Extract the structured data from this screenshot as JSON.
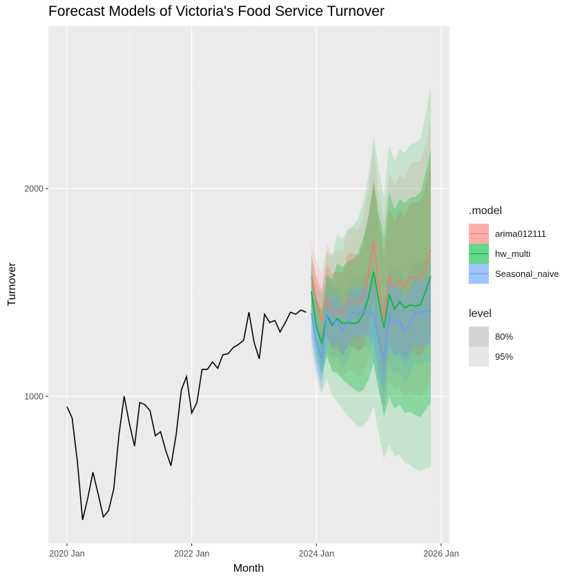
{
  "chart_data": {
    "type": "line",
    "title": "Forecast Models of Victoria's Food Service Turnover",
    "xlabel": "Month",
    "ylabel": "Turnover",
    "x_ticks": [
      "2020 Jan",
      "2022 Jan",
      "2024 Jan",
      "2026 Jan"
    ],
    "y_ticks": [
      1000,
      2000
    ],
    "xlim": [
      "2019-10",
      "2026-02"
    ],
    "ylim": [
      400,
      2790
    ],
    "grid": true,
    "legend_position": "right",
    "history": {
      "x": [
        "2020-01",
        "2020-02",
        "2020-03",
        "2020-04",
        "2020-05",
        "2020-06",
        "2020-07",
        "2020-08",
        "2020-09",
        "2020-10",
        "2020-11",
        "2020-12",
        "2021-01",
        "2021-02",
        "2021-03",
        "2021-04",
        "2021-05",
        "2021-06",
        "2021-07",
        "2021-08",
        "2021-09",
        "2021-10",
        "2021-11",
        "2021-12",
        "2022-01",
        "2022-02",
        "2022-03",
        "2022-04",
        "2022-05",
        "2022-06",
        "2022-07",
        "2022-08",
        "2022-09",
        "2022-10",
        "2022-11",
        "2022-12",
        "2023-01",
        "2023-02",
        "2023-03",
        "2023-04",
        "2023-05",
        "2023-06",
        "2023-07",
        "2023-08",
        "2023-09",
        "2023-10",
        "2023-11",
        "2023-12"
      ],
      "values": [
        950,
        895,
        685,
        405,
        510,
        635,
        530,
        420,
        450,
        555,
        815,
        1000,
        870,
        760,
        970,
        960,
        930,
        810,
        830,
        740,
        665,
        815,
        1030,
        1095,
        920,
        970,
        1130,
        1130,
        1165,
        1135,
        1200,
        1205,
        1235,
        1250,
        1270,
        1405,
        1260,
        1180,
        1395,
        1355,
        1365,
        1310,
        1355,
        1405,
        1395,
        1415,
        1405,
        null
      ]
    },
    "forecast_x": [
      "2023-12",
      "2024-01",
      "2024-02",
      "2024-03",
      "2024-04",
      "2024-05",
      "2024-06",
      "2024-07",
      "2024-08",
      "2024-09",
      "2024-10",
      "2024-11",
      "2024-12",
      "2025-01",
      "2025-02",
      "2025-03",
      "2025-04",
      "2025-05",
      "2025-06",
      "2025-07",
      "2025-08",
      "2025-09",
      "2025-10",
      "2025-11"
    ],
    "series": [
      {
        "name": "arima012111",
        "color": "#F8766D",
        "values": [
          1575,
          1455,
          1365,
          1470,
          1410,
          1415,
          1395,
          1465,
          1465,
          1445,
          1480,
          1590,
          1745,
          1530,
          1380,
          1580,
          1525,
          1555,
          1520,
          1575,
          1570,
          1565,
          1620,
          1705
        ],
        "lo80": [
          1470,
          1330,
          1220,
          1300,
          1230,
          1225,
          1195,
          1245,
          1240,
          1215,
          1230,
          1320,
          1455,
          1235,
          1080,
          1260,
          1205,
          1220,
          1180,
          1220,
          1205,
          1195,
          1235,
          1300
        ],
        "hi80": [
          1680,
          1580,
          1510,
          1640,
          1590,
          1605,
          1595,
          1685,
          1690,
          1675,
          1730,
          1860,
          2035,
          1825,
          1680,
          1900,
          1845,
          1890,
          1860,
          1930,
          1935,
          1935,
          2005,
          2110
        ],
        "lo95": [
          1410,
          1260,
          1145,
          1210,
          1135,
          1125,
          1090,
          1130,
          1120,
          1095,
          1100,
          1180,
          1305,
          1080,
          920,
          1090,
          1035,
          1045,
          995,
          1030,
          1010,
          1000,
          1030,
          1085
        ],
        "hi95": [
          1740,
          1650,
          1585,
          1730,
          1685,
          1705,
          1700,
          1800,
          1810,
          1795,
          1860,
          2000,
          2185,
          1980,
          1840,
          2070,
          2015,
          2065,
          2045,
          2120,
          2130,
          2130,
          2210,
          2325
        ]
      },
      {
        "name": "hw_multi",
        "color": "#00BA38",
        "values": [
          1505,
          1335,
          1255,
          1390,
          1340,
          1375,
          1350,
          1355,
          1350,
          1355,
          1395,
          1475,
          1600,
          1455,
          1330,
          1490,
          1420,
          1455,
          1425,
          1440,
          1435,
          1440,
          1505,
          1580
        ],
        "lo80": [
          1390,
          1200,
          1100,
          1190,
          1120,
          1110,
          1080,
          1060,
          1040,
          1020,
          1030,
          1080,
          1160,
          1030,
          900,
          1000,
          940,
          960,
          920,
          925,
          910,
          900,
          935,
          970
        ],
        "hi80": [
          1620,
          1470,
          1410,
          1590,
          1560,
          1640,
          1620,
          1650,
          1660,
          1690,
          1760,
          1870,
          2040,
          1880,
          1760,
          1980,
          1900,
          1950,
          1930,
          1955,
          1960,
          1980,
          2075,
          2190
        ],
        "lo95": [
          1330,
          1130,
          1020,
          1085,
          1005,
          975,
          940,
          905,
          880,
          855,
          855,
          890,
          950,
          820,
          700,
          770,
          710,
          720,
          680,
          670,
          650,
          640,
          655,
          660
        ],
        "hi95": [
          1680,
          1540,
          1490,
          1695,
          1675,
          1775,
          1760,
          1805,
          1820,
          1855,
          1935,
          2060,
          2250,
          2090,
          1960,
          2210,
          2130,
          2190,
          2170,
          2210,
          2220,
          2240,
          2355,
          2490
        ]
      },
      {
        "name": "Seasonal_naive",
        "color": "#619CFF",
        "values": [
          1400,
          1260,
          1180,
          1395,
          1355,
          1365,
          1310,
          1355,
          1405,
          1395,
          1415,
          1405,
          1400,
          1260,
          1180,
          1395,
          1355,
          1365,
          1310,
          1355,
          1405,
          1395,
          1415,
          1405
        ],
        "lo80": [
          1285,
          1145,
          1065,
          1280,
          1240,
          1250,
          1195,
          1240,
          1290,
          1280,
          1300,
          1290,
          1240,
          1095,
          1020,
          1235,
          1195,
          1205,
          1150,
          1195,
          1245,
          1235,
          1255,
          1245
        ],
        "hi80": [
          1515,
          1375,
          1295,
          1510,
          1470,
          1480,
          1425,
          1470,
          1520,
          1510,
          1530,
          1520,
          1560,
          1420,
          1340,
          1555,
          1515,
          1525,
          1470,
          1515,
          1565,
          1555,
          1575,
          1565
        ],
        "lo95": [
          1225,
          1085,
          1005,
          1220,
          1180,
          1190,
          1135,
          1180,
          1230,
          1220,
          1240,
          1230,
          1155,
          1015,
          935,
          1150,
          1110,
          1120,
          1065,
          1110,
          1160,
          1150,
          1170,
          1160
        ],
        "hi95": [
          1575,
          1435,
          1355,
          1570,
          1530,
          1540,
          1485,
          1530,
          1580,
          1570,
          1590,
          1580,
          1645,
          1505,
          1425,
          1640,
          1600,
          1610,
          1555,
          1600,
          1650,
          1640,
          1660,
          1650
        ]
      }
    ],
    "legend": {
      "model_title": ".model",
      "models": [
        "arima012111",
        "hw_multi",
        "Seasonal_naive"
      ],
      "level_title": "level",
      "levels": [
        "80%",
        "95%"
      ]
    }
  }
}
